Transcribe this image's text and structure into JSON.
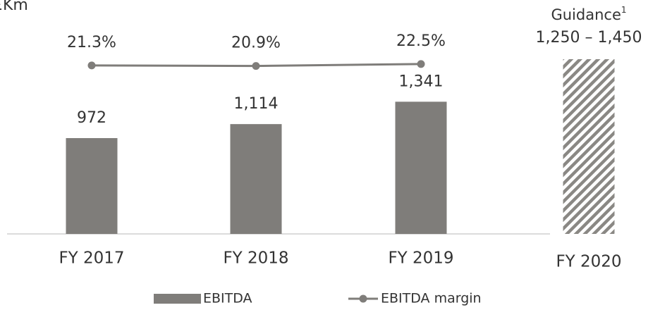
{
  "chart_data": {
    "type": "bar",
    "unit_label": "£Km",
    "categories": [
      "FY 2017",
      "FY 2018",
      "FY 2019",
      "FY 2020"
    ],
    "series": [
      {
        "name": "EBITDA",
        "color": "#7f7d7a",
        "values": [
          972,
          1114,
          1341,
          null
        ],
        "value_labels": [
          "972",
          "1,114",
          "1,341",
          null
        ]
      },
      {
        "name": "EBITDA margin",
        "type": "line",
        "axis": "y2",
        "color": "#7f7d7a",
        "values": [
          21.3,
          20.9,
          22.5,
          null
        ],
        "value_labels": [
          "21.3%",
          "20.9%",
          "22.5%",
          null
        ]
      }
    ],
    "guidance": {
      "category_index": 3,
      "label": "Guidance",
      "superscript": "1",
      "range_label": "1,250 – 1,450"
    },
    "ylim": [
      0,
      2230
    ],
    "y2lim": [
      -122,
      65
    ],
    "legend": "bottom"
  }
}
